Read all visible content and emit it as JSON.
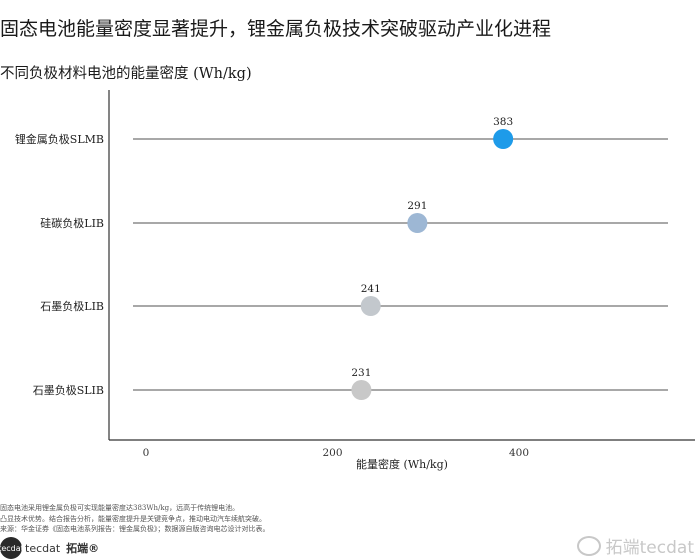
{
  "title": "固态电池能量密度显著提升，锂金属负极技术突破驱动产业化进程",
  "chart_data": {
    "type": "scatter",
    "subtitle": "不同负极材料电池的能量密度 (Wh/kg)",
    "xlabel": "能量密度 (Wh/kg)",
    "xlim": [
      -5,
      550
    ],
    "xticks": [
      0,
      200,
      400
    ],
    "categories": [
      "锂金属负极SLMB",
      "硅碳负极LIB",
      "石墨负极LIB",
      "石墨负极SLIB"
    ],
    "values": [
      383,
      291,
      241,
      231
    ],
    "point_colors": [
      "#1e9be9",
      "#9db7d4",
      "#c3c8cd",
      "#c8c8c8"
    ],
    "line_color": "#a8a8a8",
    "grid": false
  },
  "notes": [
    "固态电池采用锂金属负极可实现能量密度达383Wh/kg，远高于传统锂电池。",
    "凸显技术优势。结合报告分析，能量密度提升是关键竞争点，推动电动汽车续航突破。",
    "来源：华金证券《固态电池系列报告：锂金属负极》；数据源自版咨询电芯设计对比表。"
  ],
  "brand": {
    "logo": "tecdat",
    "name": "tecdat",
    "cn": "拓端®"
  },
  "watermark": "拓端tecdat"
}
